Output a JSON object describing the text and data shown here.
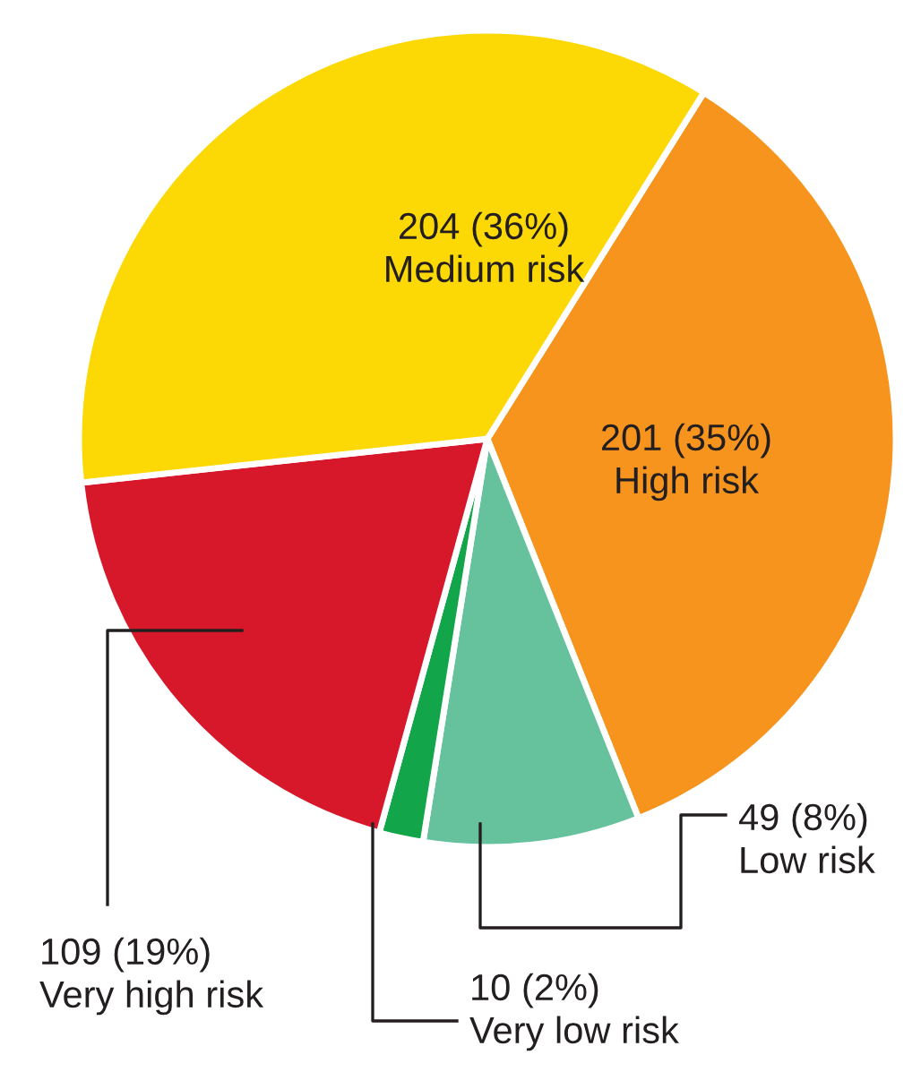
{
  "chart_data": {
    "type": "pie",
    "categories": [
      "High risk",
      "Low risk",
      "Very low risk",
      "Very high risk",
      "Medium risk"
    ],
    "values": [
      201,
      49,
      10,
      109,
      204
    ],
    "colors": [
      "#f7941d",
      "#66c29c",
      "#12a54a",
      "#d7182a",
      "#fcd804"
    ],
    "value_labels": [
      "201 (35%)",
      "49 (8%)",
      "10 (2%)",
      "109 (19%)",
      "204 (36%)"
    ],
    "legend": false
  }
}
